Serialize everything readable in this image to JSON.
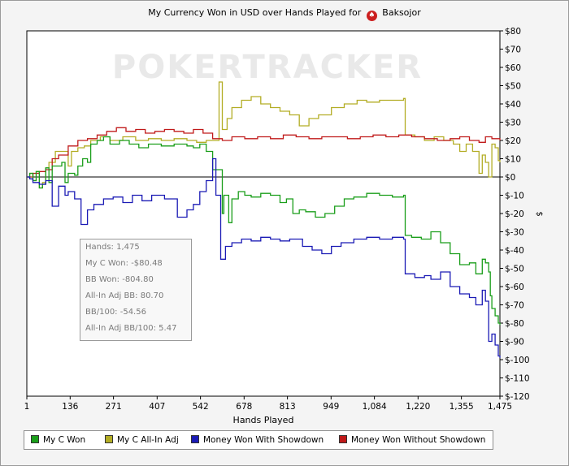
{
  "chart_data": {
    "type": "line",
    "title": "My Currency Won in USD over Hands Played for",
    "player": "Baksojor",
    "xlabel": "Hands Played",
    "ylabel": "$",
    "xlim": [
      1,
      1475
    ],
    "ylim": [
      -120,
      80
    ],
    "x_ticks": [
      1,
      136,
      271,
      407,
      542,
      678,
      813,
      949,
      1084,
      1220,
      1355,
      1475
    ],
    "x_tick_labels": [
      "1",
      "136",
      "271",
      "407",
      "542",
      "678",
      "813",
      "949",
      "1,084",
      "1,220",
      "1,355",
      "1,475"
    ],
    "y_ticks": [
      80,
      70,
      60,
      50,
      40,
      30,
      20,
      10,
      0,
      -10,
      -20,
      -30,
      -40,
      -50,
      -60,
      -70,
      -80,
      -90,
      -100,
      -110,
      -120
    ],
    "y_tick_labels": [
      "$80",
      "$70",
      "$60",
      "$50",
      "$40",
      "$30",
      "$20",
      "$10",
      "$0",
      "$-10",
      "$-20",
      "$-30",
      "$-40",
      "$-50",
      "$-60",
      "$-70",
      "$-80",
      "$-90",
      "$-100",
      "$-110",
      "$-120"
    ],
    "grid": false,
    "legend_position": "bottom",
    "watermark": "POKERTRACKER",
    "series": [
      {
        "name": "My C Won",
        "color": "#1a9e1a",
        "points": [
          [
            1,
            0
          ],
          [
            10,
            2
          ],
          [
            20,
            -2
          ],
          [
            30,
            3
          ],
          [
            40,
            -6
          ],
          [
            50,
            -4
          ],
          [
            60,
            5
          ],
          [
            70,
            -3
          ],
          [
            80,
            6
          ],
          [
            100,
            6
          ],
          [
            110,
            8
          ],
          [
            120,
            -3
          ],
          [
            130,
            2
          ],
          [
            150,
            1
          ],
          [
            160,
            6
          ],
          [
            175,
            10
          ],
          [
            190,
            8
          ],
          [
            200,
            18
          ],
          [
            220,
            20
          ],
          [
            240,
            22
          ],
          [
            260,
            18
          ],
          [
            290,
            20
          ],
          [
            320,
            18
          ],
          [
            350,
            16
          ],
          [
            380,
            18
          ],
          [
            420,
            17
          ],
          [
            460,
            18
          ],
          [
            500,
            17
          ],
          [
            520,
            16
          ],
          [
            540,
            18
          ],
          [
            560,
            14
          ],
          [
            580,
            4
          ],
          [
            610,
            -20
          ],
          [
            615,
            -10
          ],
          [
            630,
            -25
          ],
          [
            640,
            -12
          ],
          [
            660,
            -8
          ],
          [
            680,
            -10
          ],
          [
            700,
            -11
          ],
          [
            730,
            -9
          ],
          [
            760,
            -10
          ],
          [
            790,
            -14
          ],
          [
            810,
            -12
          ],
          [
            830,
            -20
          ],
          [
            850,
            -18
          ],
          [
            870,
            -19
          ],
          [
            900,
            -22
          ],
          [
            930,
            -20
          ],
          [
            960,
            -16
          ],
          [
            990,
            -12
          ],
          [
            1020,
            -11
          ],
          [
            1060,
            -9
          ],
          [
            1100,
            -10
          ],
          [
            1140,
            -11
          ],
          [
            1175,
            -10
          ],
          [
            1180,
            -32
          ],
          [
            1200,
            -33
          ],
          [
            1230,
            -34
          ],
          [
            1260,
            -30
          ],
          [
            1290,
            -36
          ],
          [
            1320,
            -42
          ],
          [
            1350,
            -48
          ],
          [
            1380,
            -47
          ],
          [
            1400,
            -53
          ],
          [
            1420,
            -45
          ],
          [
            1430,
            -47
          ],
          [
            1440,
            -52
          ],
          [
            1445,
            -65
          ],
          [
            1450,
            -72
          ],
          [
            1460,
            -76
          ],
          [
            1470,
            -80
          ],
          [
            1475,
            -81
          ]
        ]
      },
      {
        "name": "My C All-In Adj",
        "color": "#b3ad25",
        "points": [
          [
            1,
            0
          ],
          [
            10,
            2
          ],
          [
            20,
            -2
          ],
          [
            30,
            3
          ],
          [
            40,
            -6
          ],
          [
            50,
            -3
          ],
          [
            60,
            5
          ],
          [
            70,
            8
          ],
          [
            90,
            14
          ],
          [
            120,
            14
          ],
          [
            130,
            6
          ],
          [
            140,
            14
          ],
          [
            160,
            16
          ],
          [
            180,
            17
          ],
          [
            200,
            20
          ],
          [
            230,
            22
          ],
          [
            260,
            20
          ],
          [
            300,
            22
          ],
          [
            340,
            20
          ],
          [
            380,
            21
          ],
          [
            420,
            20
          ],
          [
            460,
            21
          ],
          [
            500,
            20
          ],
          [
            530,
            19
          ],
          [
            560,
            20
          ],
          [
            590,
            20
          ],
          [
            600,
            52
          ],
          [
            610,
            26
          ],
          [
            625,
            32
          ],
          [
            640,
            38
          ],
          [
            670,
            42
          ],
          [
            700,
            44
          ],
          [
            730,
            40
          ],
          [
            760,
            38
          ],
          [
            790,
            36
          ],
          [
            820,
            34
          ],
          [
            850,
            28
          ],
          [
            880,
            32
          ],
          [
            910,
            34
          ],
          [
            950,
            38
          ],
          [
            990,
            40
          ],
          [
            1030,
            42
          ],
          [
            1060,
            41
          ],
          [
            1100,
            42
          ],
          [
            1130,
            42
          ],
          [
            1175,
            43
          ],
          [
            1180,
            23
          ],
          [
            1210,
            22
          ],
          [
            1240,
            20
          ],
          [
            1270,
            22
          ],
          [
            1300,
            20
          ],
          [
            1330,
            18
          ],
          [
            1350,
            14
          ],
          [
            1370,
            18
          ],
          [
            1390,
            14
          ],
          [
            1410,
            2
          ],
          [
            1420,
            12
          ],
          [
            1430,
            8
          ],
          [
            1440,
            0
          ],
          [
            1450,
            18
          ],
          [
            1460,
            16
          ],
          [
            1470,
            9
          ],
          [
            1475,
            8
          ]
        ]
      },
      {
        "name": "Money Won With Showdown",
        "color": "#1b1bb5",
        "points": [
          [
            1,
            0
          ],
          [
            10,
            -1
          ],
          [
            20,
            -3
          ],
          [
            40,
            -4
          ],
          [
            60,
            -2
          ],
          [
            80,
            -16
          ],
          [
            100,
            -5
          ],
          [
            120,
            -10
          ],
          [
            130,
            -8
          ],
          [
            150,
            -12
          ],
          [
            170,
            -26
          ],
          [
            190,
            -18
          ],
          [
            210,
            -15
          ],
          [
            240,
            -12
          ],
          [
            270,
            -11
          ],
          [
            300,
            -14
          ],
          [
            330,
            -10
          ],
          [
            360,
            -13
          ],
          [
            390,
            -10
          ],
          [
            430,
            -12
          ],
          [
            470,
            -22
          ],
          [
            500,
            -18
          ],
          [
            520,
            -15
          ],
          [
            540,
            -8
          ],
          [
            560,
            -2
          ],
          [
            580,
            10
          ],
          [
            590,
            -10
          ],
          [
            605,
            -45
          ],
          [
            620,
            -38
          ],
          [
            640,
            -36
          ],
          [
            670,
            -34
          ],
          [
            700,
            -35
          ],
          [
            730,
            -33
          ],
          [
            760,
            -34
          ],
          [
            790,
            -35
          ],
          [
            820,
            -34
          ],
          [
            860,
            -38
          ],
          [
            890,
            -40
          ],
          [
            920,
            -42
          ],
          [
            950,
            -38
          ],
          [
            980,
            -36
          ],
          [
            1020,
            -34
          ],
          [
            1060,
            -33
          ],
          [
            1100,
            -34
          ],
          [
            1140,
            -33
          ],
          [
            1175,
            -34
          ],
          [
            1180,
            -53
          ],
          [
            1210,
            -55
          ],
          [
            1240,
            -54
          ],
          [
            1260,
            -56
          ],
          [
            1290,
            -52
          ],
          [
            1320,
            -60
          ],
          [
            1350,
            -64
          ],
          [
            1380,
            -66
          ],
          [
            1400,
            -70
          ],
          [
            1420,
            -62
          ],
          [
            1430,
            -68
          ],
          [
            1440,
            -90
          ],
          [
            1450,
            -86
          ],
          [
            1460,
            -92
          ],
          [
            1470,
            -98
          ],
          [
            1475,
            -99
          ]
        ]
      },
      {
        "name": "Money Won Without Showdown",
        "color": "#c01a1a",
        "points": [
          [
            1,
            0
          ],
          [
            20,
            2
          ],
          [
            40,
            3
          ],
          [
            60,
            4
          ],
          [
            80,
            10
          ],
          [
            100,
            12
          ],
          [
            130,
            17
          ],
          [
            160,
            20
          ],
          [
            190,
            21
          ],
          [
            220,
            23
          ],
          [
            250,
            25
          ],
          [
            280,
            27
          ],
          [
            310,
            25
          ],
          [
            340,
            26
          ],
          [
            370,
            24
          ],
          [
            400,
            25
          ],
          [
            430,
            26
          ],
          [
            460,
            25
          ],
          [
            490,
            24
          ],
          [
            520,
            26
          ],
          [
            550,
            24
          ],
          [
            580,
            21
          ],
          [
            610,
            20
          ],
          [
            640,
            22
          ],
          [
            680,
            21
          ],
          [
            720,
            22
          ],
          [
            760,
            21
          ],
          [
            800,
            23
          ],
          [
            840,
            22
          ],
          [
            880,
            21
          ],
          [
            920,
            22
          ],
          [
            960,
            22
          ],
          [
            1000,
            21
          ],
          [
            1040,
            22
          ],
          [
            1080,
            23
          ],
          [
            1120,
            22
          ],
          [
            1160,
            23
          ],
          [
            1200,
            22
          ],
          [
            1240,
            21
          ],
          [
            1280,
            20
          ],
          [
            1320,
            21
          ],
          [
            1350,
            22
          ],
          [
            1380,
            20
          ],
          [
            1410,
            19
          ],
          [
            1430,
            22
          ],
          [
            1450,
            21
          ],
          [
            1475,
            20
          ]
        ]
      }
    ]
  },
  "stats": {
    "hands": "Hands: 1,475",
    "my_c_won": "My C Won: -$80.48",
    "bb_won": "BB Won: -804.80",
    "all_in_adj_bb": "All-In Adj BB: 80.70",
    "bb_100": "BB/100: -54.56",
    "all_in_adj_bb_100": "All-In Adj BB/100: 5.47"
  }
}
